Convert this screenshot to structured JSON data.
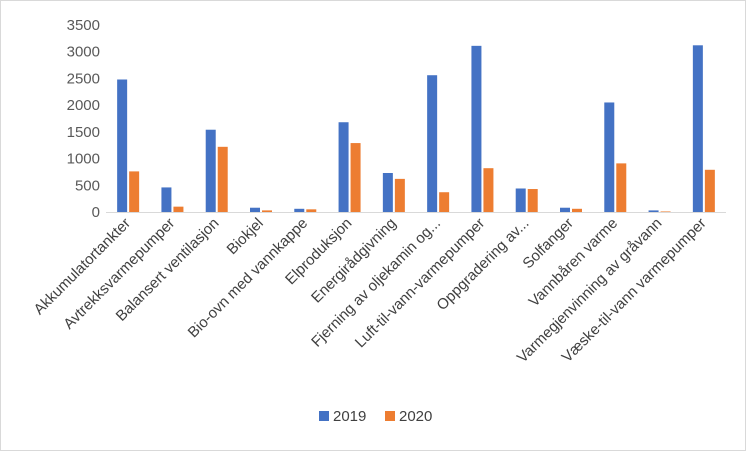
{
  "chart_data": {
    "type": "bar",
    "categories": [
      "Akkumulatortankter",
      "Avtrekksvarmepumper",
      "Balansert ventilasjon",
      "Biokjel",
      "Bio-ovn med vannkappe",
      "Elproduksjon",
      "Energirådgivning",
      "Fjerning av oljekamin og...",
      "Luft-til-vann-varmepumper",
      "Oppgradering av...",
      "Solfanger",
      "Vannbåren varme",
      "Varmegjenvinning av gråvann",
      "Væske-til-vann varmepumper"
    ],
    "series": [
      {
        "name": "2019",
        "color": "#4472C4",
        "values": [
          2480,
          460,
          1540,
          80,
          60,
          1680,
          730,
          2560,
          3110,
          440,
          80,
          2050,
          30,
          3120
        ]
      },
      {
        "name": "2020",
        "color": "#ED7D31",
        "values": [
          760,
          100,
          1220,
          30,
          50,
          1290,
          620,
          370,
          820,
          430,
          60,
          910,
          10,
          790
        ]
      }
    ],
    "yticks": [
      0,
      500,
      1000,
      1500,
      2000,
      2500,
      3000,
      3500
    ],
    "ylim": [
      0,
      3500
    ],
    "grid": false,
    "legend": "bottom"
  }
}
